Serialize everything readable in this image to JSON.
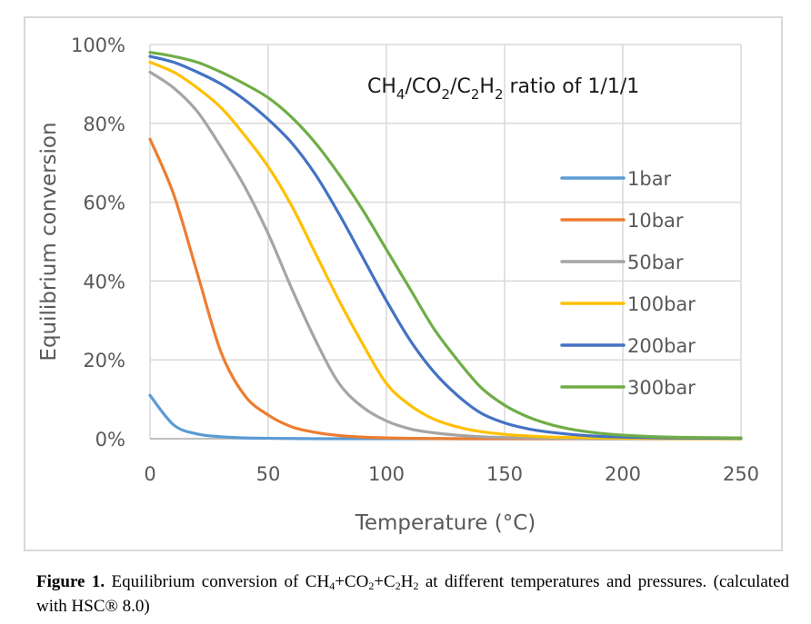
{
  "chart_data": {
    "type": "line",
    "title": "",
    "annotation": {
      "parts": [
        [
          "CH",
          "n"
        ],
        [
          "4",
          "sub"
        ],
        [
          "/CO",
          "n"
        ],
        [
          "2",
          "sub"
        ],
        [
          "/C",
          "n"
        ],
        [
          "2",
          "sub"
        ],
        [
          "H",
          "n"
        ],
        [
          "2",
          "sub"
        ],
        [
          " ratio of 1/1/1",
          "n"
        ]
      ],
      "text": "CH4/CO2/C2H2 ratio of 1/1/1"
    },
    "xlabel": "Temperature (°C)",
    "ylabel": "Equilibrium conversion",
    "xlim": [
      0,
      250
    ],
    "ylim": [
      0,
      100
    ],
    "xticks": [
      0,
      50,
      100,
      150,
      200,
      250
    ],
    "yticks": [
      0,
      20,
      40,
      60,
      80,
      100
    ],
    "ytick_labels": [
      "0%",
      "20%",
      "40%",
      "60%",
      "80%",
      "100%"
    ],
    "grid": true,
    "legend_position": "right",
    "x": [
      0,
      10,
      20,
      30,
      40,
      50,
      60,
      70,
      80,
      90,
      100,
      110,
      120,
      130,
      140,
      150,
      160,
      170,
      180,
      190,
      200,
      220,
      250
    ],
    "series": [
      {
        "name": "1bar",
        "color": "#5b9bd5",
        "values": [
          11,
          3.5,
          1.2,
          0.5,
          0.2,
          0.1,
          0.05,
          0,
          0,
          0,
          0,
          0,
          0,
          0,
          0,
          0,
          0,
          0,
          0,
          0,
          0,
          0,
          0
        ]
      },
      {
        "name": "10bar",
        "color": "#ed7d31",
        "values": [
          76,
          62,
          42,
          22,
          11,
          6,
          3,
          1.6,
          0.8,
          0.4,
          0.2,
          0.1,
          0.05,
          0,
          0,
          0,
          0,
          0,
          0,
          0,
          0,
          0,
          0
        ]
      },
      {
        "name": "50bar",
        "color": "#a5a5a5",
        "values": [
          93,
          89,
          83,
          74,
          64,
          52,
          38,
          25,
          14,
          8,
          4.5,
          2.5,
          1.5,
          0.9,
          0.5,
          0.3,
          0.2,
          0.1,
          0.05,
          0,
          0,
          0,
          0
        ]
      },
      {
        "name": "100bar",
        "color": "#ffc000",
        "values": [
          95.5,
          93,
          89,
          84,
          77,
          69,
          59,
          47,
          35,
          24,
          14,
          8.5,
          5,
          3,
          1.8,
          1.1,
          0.7,
          0.4,
          0.3,
          0.2,
          0.1,
          0.05,
          0
        ]
      },
      {
        "name": "200bar",
        "color": "#4472c4",
        "values": [
          97,
          95.5,
          93,
          90,
          86,
          81,
          75,
          67,
          57,
          46,
          35,
          25,
          17,
          11,
          6.5,
          4,
          2.5,
          1.6,
          1,
          0.6,
          0.4,
          0.2,
          0.1
        ]
      },
      {
        "name": "300bar",
        "color": "#70ad47",
        "values": [
          98,
          97,
          95.5,
          93,
          90,
          86.5,
          81.5,
          75,
          67,
          58,
          48,
          38,
          28,
          20,
          13,
          8.5,
          5.5,
          3.5,
          2.2,
          1.4,
          0.9,
          0.4,
          0.2
        ]
      }
    ]
  },
  "caption": {
    "label": "Figure 1.",
    "text_parts": [
      [
        " Equilibrium conversion of CH",
        "n"
      ],
      [
        "4",
        "sub"
      ],
      [
        "+CO",
        "n"
      ],
      [
        "2",
        "sub"
      ],
      [
        "+C",
        "n"
      ],
      [
        "2",
        "sub"
      ],
      [
        "H",
        "n"
      ],
      [
        "2",
        "sub"
      ],
      [
        " at different temperatures and pressures. (calculated with HSC® 8.0)",
        "n"
      ]
    ]
  }
}
